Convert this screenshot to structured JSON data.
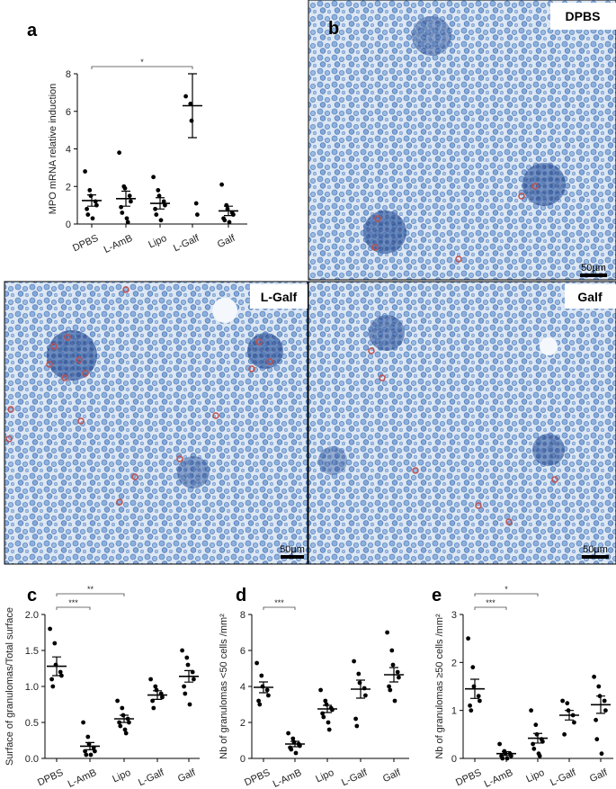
{
  "chart_data": [
    {
      "type": "dotplot",
      "panel": "a",
      "y_label": "MPO mRNA relative induction",
      "categories": [
        "DPBS",
        "L-AmB",
        "Lipo",
        "L-Galf",
        "Galf"
      ],
      "points": [
        [
          2.8,
          1.8,
          1.5,
          1.2,
          1.0,
          0.8,
          0.5,
          0.3
        ],
        [
          3.8,
          2.0,
          1.9,
          1.5,
          1.2,
          0.9,
          0.6,
          0.3,
          0.1
        ],
        [
          2.5,
          1.8,
          1.5,
          1.2,
          1.0,
          0.8,
          0.5,
          0.2
        ],
        [
          6.8,
          6.4,
          5.5,
          1.1,
          0.5
        ],
        [
          2.1,
          1.0,
          0.8,
          0.6,
          0.5,
          0.3,
          0.2,
          0.1
        ]
      ],
      "means": [
        1.25,
        1.35,
        1.1,
        6.3,
        0.7
      ],
      "errors": [
        0.3,
        0.4,
        0.3,
        1.7,
        0.25
      ],
      "ylim": [
        0,
        8
      ],
      "yticks": [
        0,
        2,
        4,
        6,
        8
      ],
      "annotations": [
        {
          "from": "DPBS",
          "to": "L-Galf",
          "label": "*"
        }
      ]
    },
    {
      "type": "dotplot",
      "panel": "c",
      "y_label": "Surface of granulomas/Total surface",
      "categories": [
        "DPBS",
        "L-AmB",
        "Lipo",
        "L-Galf",
        "Galf"
      ],
      "points": [
        [
          1.8,
          1.6,
          1.3,
          1.2,
          1.15,
          1.1,
          1.0
        ],
        [
          0.5,
          0.3,
          0.2,
          0.15,
          0.1,
          0.1,
          0.05,
          0.05
        ],
        [
          0.8,
          0.7,
          0.6,
          0.55,
          0.5,
          0.5,
          0.45,
          0.4,
          0.35
        ],
        [
          1.1,
          1.0,
          0.95,
          0.9,
          0.85,
          0.8,
          0.7
        ],
        [
          1.5,
          1.4,
          1.3,
          1.2,
          1.1,
          1.0,
          0.9,
          0.75
        ]
      ],
      "means": [
        1.28,
        0.17,
        0.55,
        0.88,
        1.14
      ],
      "errors": [
        0.13,
        0.05,
        0.05,
        0.06,
        0.08
      ],
      "ylim": [
        0,
        2
      ],
      "yticks": [
        {
          "value": 0,
          "label": "0.0"
        },
        {
          "value": 0.5,
          "label": "0.5"
        },
        {
          "value": 1,
          "label": "1.0"
        },
        {
          "value": 1.5,
          "label": "1.5"
        },
        {
          "value": 2,
          "label": "2.0"
        }
      ],
      "annotations": [
        {
          "from": "DPBS",
          "to": "L-AmB",
          "label": "***"
        },
        {
          "from": "DPBS",
          "to": "Lipo",
          "label": "**"
        }
      ]
    },
    {
      "type": "dotplot",
      "panel": "d",
      "y_label": "Nb of granulomas <50 cells /mm²",
      "categories": [
        "DPBS",
        "L-AmB",
        "Lipo",
        "L-Galf",
        "Galf"
      ],
      "points": [
        [
          5.3,
          4.6,
          4.0,
          3.8,
          3.5,
          3.2,
          3.0
        ],
        [
          1.4,
          1.1,
          0.9,
          0.8,
          0.7,
          0.6,
          0.5,
          0.3
        ],
        [
          3.8,
          3.2,
          3.0,
          2.8,
          2.7,
          2.5,
          2.3,
          2.0,
          1.6
        ],
        [
          5.4,
          4.7,
          4.2,
          3.9,
          3.5,
          2.2,
          1.8
        ],
        [
          7.0,
          6.0,
          5.2,
          4.8,
          4.5,
          4.0,
          3.8,
          3.2
        ]
      ],
      "means": [
        3.95,
        0.8,
        2.75,
        3.85,
        4.65
      ],
      "errors": [
        0.3,
        0.15,
        0.2,
        0.5,
        0.4
      ],
      "ylim": [
        0,
        8
      ],
      "yticks": [
        0,
        2,
        4,
        6,
        8
      ],
      "annotations": [
        {
          "from": "DPBS",
          "to": "L-AmB",
          "label": "***"
        }
      ]
    },
    {
      "type": "dotplot",
      "panel": "e",
      "y_label": "Nb of granulomas ≥50 cells /mm²",
      "categories": [
        "DPBS",
        "L-AmB",
        "Lipo",
        "L-Galf",
        "Galf"
      ],
      "points": [
        [
          2.5,
          1.9,
          1.5,
          1.3,
          1.2,
          1.1,
          1.0
        ],
        [
          0.3,
          0.15,
          0.1,
          0.1,
          0.05,
          0.05,
          0.0,
          0.0
        ],
        [
          1.0,
          0.7,
          0.5,
          0.4,
          0.35,
          0.3,
          0.2,
          0.1,
          0.05
        ],
        [
          1.2,
          1.15,
          1.0,
          0.9,
          0.75,
          0.5
        ],
        [
          1.7,
          1.5,
          1.3,
          1.2,
          1.0,
          0.8,
          0.4,
          0.1
        ]
      ],
      "means": [
        1.45,
        0.1,
        0.42,
        0.9,
        1.12
      ],
      "errors": [
        0.2,
        0.04,
        0.1,
        0.1,
        0.18
      ],
      "ylim": [
        0,
        3
      ],
      "yticks": [
        0,
        1,
        2,
        3
      ],
      "annotations": [
        {
          "from": "DPBS",
          "to": "L-AmB",
          "label": "***"
        },
        {
          "from": "DPBS",
          "to": "Lipo",
          "label": "*"
        }
      ]
    }
  ],
  "images": [
    {
      "panel": "b",
      "label": "DPBS",
      "scale": "50µm"
    },
    {
      "label": "L-Galf",
      "scale": "50µm"
    },
    {
      "label": "Galf",
      "scale": "50µm"
    }
  ]
}
